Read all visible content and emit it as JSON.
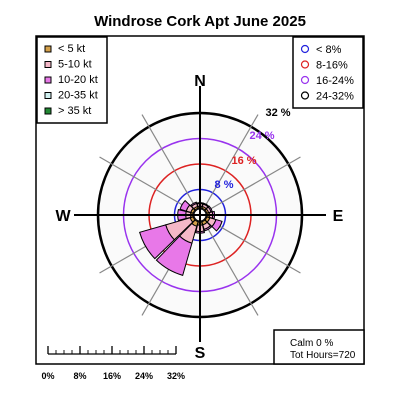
{
  "chart_data": {
    "type": "windrose",
    "title": "Windrose  Cork Apt June 2025",
    "directions": [
      "N",
      "E",
      "S",
      "W"
    ],
    "rings": [
      {
        "value": 8,
        "label": "8 %",
        "color": "#2222dd"
      },
      {
        "value": 16,
        "label": "16 %",
        "color": "#dd2222"
      },
      {
        "value": 24,
        "label": "24 %",
        "color": "#9933ee"
      },
      {
        "value": 32,
        "label": "32 %",
        "color": "#000000"
      }
    ],
    "speed_legend": [
      {
        "label": "< 5  kt",
        "color": "#d4a04a"
      },
      {
        "label": "5-10 kt",
        "color": "#f4b8c8"
      },
      {
        "label": "10-20 kt",
        "color": "#e878e8"
      },
      {
        "label": "20-35 kt",
        "color": "#d0f0f0"
      },
      {
        "label": "> 35 kt",
        "color": "#228833"
      }
    ],
    "ring_legend": [
      "< 8%",
      "8-16%",
      "16-24%",
      "24-32%"
    ],
    "sectors": [
      {
        "dir": 0,
        "values": [
          0.6,
          0.8,
          0.3,
          0,
          0
        ]
      },
      {
        "dir": 30,
        "values": [
          0.6,
          0.8,
          0.3,
          0,
          0
        ]
      },
      {
        "dir": 60,
        "values": [
          0.6,
          0.8,
          0.4,
          0,
          0
        ]
      },
      {
        "dir": 90,
        "values": [
          0.8,
          1.0,
          0.6,
          0,
          0
        ]
      },
      {
        "dir": 120,
        "values": [
          1.0,
          2.0,
          2.0,
          0,
          0
        ]
      },
      {
        "dir": 150,
        "values": [
          1.0,
          1.5,
          0.5,
          0,
          0
        ]
      },
      {
        "dir": 180,
        "values": [
          1.0,
          2.0,
          0.5,
          0,
          0
        ]
      },
      {
        "dir": 210,
        "values": [
          1.5,
          5.5,
          10.5,
          0,
          0
        ]
      },
      {
        "dir": 240,
        "values": [
          1.0,
          8.0,
          8.5,
          0,
          0
        ]
      },
      {
        "dir": 270,
        "values": [
          0.8,
          1.5,
          2.5,
          0,
          0
        ]
      },
      {
        "dir": 300,
        "values": [
          0.8,
          1.5,
          2.0,
          0,
          0
        ]
      },
      {
        "dir": 330,
        "values": [
          0.6,
          1.0,
          0.4,
          0,
          0
        ]
      }
    ],
    "calm": "Calm 0 %",
    "total_hours": "Tot Hours=720",
    "scale_labels": [
      "0%",
      "8%",
      "16%",
      "24%",
      "32%"
    ]
  }
}
